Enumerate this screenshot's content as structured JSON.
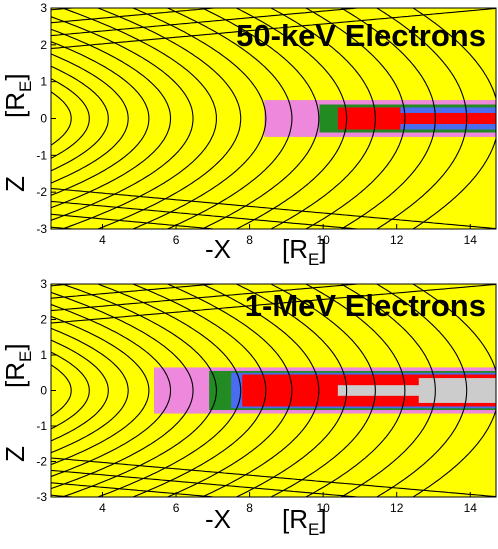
{
  "chart_data": [
    {
      "type": "heatmap",
      "title": "50-keV Electrons",
      "xlabel_prefix": "-X",
      "ylabel_prefix": "Z",
      "unit_main": "[R",
      "unit_sub": "E",
      "unit_close": "]",
      "xlim": [
        2.6,
        14.7
      ],
      "ylim": [
        -3,
        3
      ],
      "xticks": [
        4,
        6,
        8,
        10,
        12,
        14
      ],
      "yticks": [
        -3,
        -2,
        -1,
        0,
        1,
        2,
        3
      ],
      "background_color": "#ffff00",
      "regions": [
        {
          "x0": 8.4,
          "x1": 14.7,
          "y0": -0.5,
          "y1": 0.5,
          "color": "#ee88dd"
        },
        {
          "x0": 9.9,
          "x1": 14.7,
          "y0": -0.38,
          "y1": 0.38,
          "color": "#228b22"
        },
        {
          "x0": 10.4,
          "x1": 14.7,
          "y0": -0.3,
          "y1": 0.3,
          "color": "#4a6cf0"
        },
        {
          "x0": 10.4,
          "x1": 12.1,
          "y0": -0.3,
          "y1": 0.3,
          "color": "#ff0000"
        },
        {
          "x0": 12.1,
          "x1": 14.7,
          "y0": -0.15,
          "y1": 0.15,
          "color": "#ff0000"
        }
      ],
      "field_line_count": 18
    },
    {
      "type": "heatmap",
      "title": "1-MeV Electrons",
      "xlabel_prefix": "-X",
      "ylabel_prefix": "Z",
      "unit_main": "[R",
      "unit_sub": "E",
      "unit_close": "]",
      "xlim": [
        2.6,
        14.7
      ],
      "ylim": [
        -3,
        3
      ],
      "xticks": [
        4,
        6,
        8,
        10,
        12,
        14
      ],
      "yticks": [
        -3,
        -2,
        -1,
        0,
        1,
        2,
        3
      ],
      "background_color": "#ffff00",
      "regions": [
        {
          "x0": 5.4,
          "x1": 14.7,
          "y0": -0.65,
          "y1": 0.65,
          "color": "#ee88dd"
        },
        {
          "x0": 6.9,
          "x1": 14.7,
          "y0": -0.55,
          "y1": 0.55,
          "color": "#228b22"
        },
        {
          "x0": 7.5,
          "x1": 14.7,
          "y0": -0.5,
          "y1": 0.5,
          "color": "#4a6cf0"
        },
        {
          "x0": 7.8,
          "x1": 14.7,
          "y0": -0.45,
          "y1": 0.45,
          "color": "#ff0000"
        },
        {
          "x0": 10.4,
          "x1": 14.7,
          "y0": -0.15,
          "y1": 0.15,
          "color": "#cccccc"
        },
        {
          "x0": 12.6,
          "x1": 14.7,
          "y0": -0.35,
          "y1": 0.35,
          "color": "#cccccc"
        }
      ],
      "field_line_count": 18
    }
  ]
}
